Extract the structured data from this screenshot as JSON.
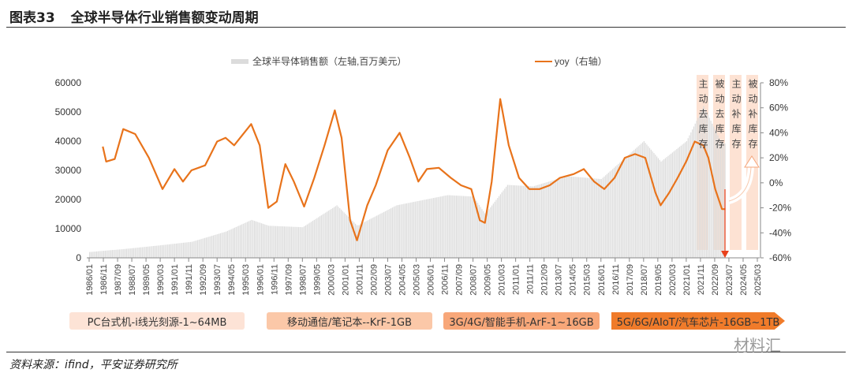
{
  "header": {
    "figure_no": "图表33",
    "title": "全球半导体行业销售额变动周期"
  },
  "source": "资料来源：ifind，平安证券研究所",
  "watermark": "材料汇",
  "phases": [
    {
      "label": "PC台式机-i线光刻源-1~64MB",
      "color": "#fde3d6"
    },
    {
      "label": "移动通信/笔记本--KrF-1GB",
      "color": "#fbc8a8"
    },
    {
      "label": "3G/4G/智能手机-ArF-1~16GB",
      "color": "#f8a779"
    },
    {
      "label": "5G/6G/AIoT/汽车芯片-16GB~1TB",
      "color": "#f07b2a"
    }
  ],
  "cycle_labels": [
    "主动去库存",
    "被动去库存",
    "主动补库存",
    "被动补库存"
  ],
  "colors": {
    "bars": "#dcdcdc",
    "line": "#e8731b",
    "shade": "#fde2d3",
    "arrow": "#e8401b"
  },
  "chart_data": {
    "type": "bar+line",
    "title": "全球半导体行业销售额变动周期",
    "legend": [
      {
        "name": "全球半导体销售额（左轴,百万美元）",
        "type": "bar"
      },
      {
        "name": "yoy（右轴）",
        "type": "line"
      }
    ],
    "legend_placement": "top",
    "y_left": {
      "ticks": [
        "0",
        "10000",
        "20000",
        "30000",
        "40000",
        "50000",
        "60000"
      ],
      "range": [
        0,
        60000
      ]
    },
    "y_right": {
      "ticks": [
        "-60%",
        "-40%",
        "-20%",
        "0%",
        "20%",
        "40%",
        "60%",
        "80%"
      ],
      "range": [
        -60,
        80
      ]
    },
    "x_range": [
      1986.0,
      2025.17
    ],
    "x_ticks": [
      "1986/01",
      "1986/11",
      "1987/09",
      "1988/07",
      "1989/05",
      "1990/03",
      "1991/01",
      "1991/11",
      "1992/09",
      "1993/07",
      "1994/05",
      "1995/03",
      "1996/01",
      "1996/11",
      "1997/09",
      "1998/07",
      "1999/05",
      "2000/03",
      "2001/01",
      "2001/11",
      "2002/09",
      "2003/07",
      "2004/05",
      "2005/03",
      "2006/01",
      "2006/11",
      "2007/09",
      "2008/07",
      "2009/05",
      "2010/03",
      "2011/01",
      "2011/11",
      "2012/09",
      "2013/07",
      "2014/05",
      "2015/03",
      "2016/01",
      "2016/11",
      "2017/09",
      "2018/07",
      "2019/05",
      "2020/03",
      "2021/01",
      "2021/11",
      "2022/09",
      "2023/07",
      "2024/05",
      "2025/03"
    ],
    "sales": [
      [
        1986,
        2000
      ],
      [
        1988,
        3000
      ],
      [
        1990,
        4200
      ],
      [
        1992,
        5500
      ],
      [
        1994,
        9000
      ],
      [
        1995.5,
        13000
      ],
      [
        1996.5,
        11000
      ],
      [
        1998.5,
        10500
      ],
      [
        2000.5,
        18000
      ],
      [
        2001.7,
        11000
      ],
      [
        2004,
        18000
      ],
      [
        2007,
        21500
      ],
      [
        2008.5,
        21000
      ],
      [
        2009.2,
        15000
      ],
      [
        2010.5,
        25000
      ],
      [
        2012,
        24500
      ],
      [
        2014,
        28000
      ],
      [
        2016,
        27000
      ],
      [
        2018.5,
        40000
      ],
      [
        2019.5,
        33000
      ],
      [
        2021,
        40000
      ],
      [
        2022,
        52000
      ],
      [
        2023,
        40000
      ],
      [
        2023.3,
        39000
      ]
    ],
    "yoy": [
      [
        1986.8,
        29
      ],
      [
        1987,
        17
      ],
      [
        1987.5,
        19
      ],
      [
        1988,
        43
      ],
      [
        1988.7,
        39
      ],
      [
        1989.5,
        20
      ],
      [
        1990.3,
        -5
      ],
      [
        1991,
        11
      ],
      [
        1991.5,
        1
      ],
      [
        1992,
        10
      ],
      [
        1992.8,
        14
      ],
      [
        1993.5,
        33
      ],
      [
        1994,
        36
      ],
      [
        1994.5,
        30
      ],
      [
        1995.5,
        47
      ],
      [
        1996,
        30
      ],
      [
        1996.5,
        -20
      ],
      [
        1997,
        -15
      ],
      [
        1997.5,
        15
      ],
      [
        1998,
        1
      ],
      [
        1998.6,
        -19
      ],
      [
        1999.2,
        4
      ],
      [
        1999.8,
        30
      ],
      [
        2000.4,
        58
      ],
      [
        2000.8,
        36
      ],
      [
        2001.3,
        -30
      ],
      [
        2001.7,
        -46
      ],
      [
        2002.3,
        -18
      ],
      [
        2002.8,
        -2
      ],
      [
        2003.5,
        26
      ],
      [
        2004.2,
        40
      ],
      [
        2004.8,
        20
      ],
      [
        2005.3,
        1
      ],
      [
        2005.8,
        11
      ],
      [
        2006.5,
        12
      ],
      [
        2007.2,
        4
      ],
      [
        2007.8,
        -2
      ],
      [
        2008.4,
        -5
      ],
      [
        2008.9,
        -30
      ],
      [
        2009.2,
        -32
      ],
      [
        2009.6,
        1
      ],
      [
        2010.1,
        67
      ],
      [
        2010.6,
        30
      ],
      [
        2011.2,
        4
      ],
      [
        2011.8,
        -5
      ],
      [
        2012.4,
        -5
      ],
      [
        2013,
        -2
      ],
      [
        2013.6,
        4
      ],
      [
        2014.4,
        7
      ],
      [
        2015,
        11
      ],
      [
        2015.6,
        1
      ],
      [
        2016.2,
        -5
      ],
      [
        2016.8,
        4
      ],
      [
        2017.4,
        20
      ],
      [
        2018,
        23
      ],
      [
        2018.6,
        20
      ],
      [
        2019.2,
        -8
      ],
      [
        2019.5,
        -18
      ],
      [
        2020,
        -8
      ],
      [
        2020.5,
        4
      ],
      [
        2021,
        17
      ],
      [
        2021.5,
        33
      ],
      [
        2022,
        30
      ],
      [
        2022.3,
        20
      ],
      [
        2022.7,
        -5
      ],
      [
        2023.1,
        -21
      ],
      [
        2023.3,
        -21
      ]
    ]
  }
}
